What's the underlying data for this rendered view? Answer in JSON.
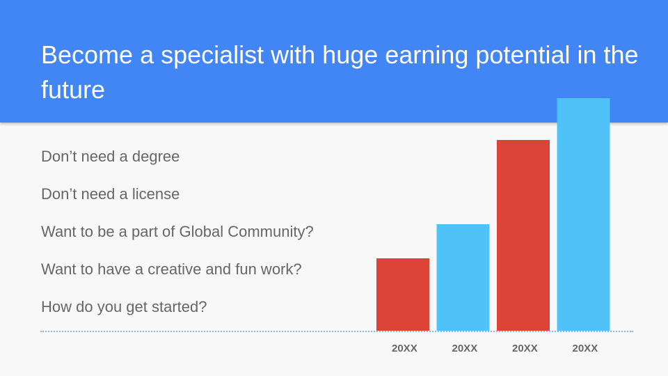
{
  "slide": {
    "title": "Become a specialist with huge earning potential in the future",
    "bullets": [
      "Don’t need a degree",
      "Don’t need a license",
      "Want to be a part of Global Community?",
      "Want to have a creative and fun work?",
      "How do you get started?"
    ]
  },
  "colors": {
    "header": "#4285f4",
    "bar_red": "#db4437",
    "bar_blue": "#4fc3f7"
  },
  "chart_data": {
    "type": "bar",
    "title": "",
    "xlabel": "",
    "ylabel": "",
    "categories": [
      "20XX",
      "20XX",
      "20XX",
      "20XX"
    ],
    "values": [
      104,
      153,
      274,
      334
    ],
    "bar_colors": [
      "#db4437",
      "#4fc3f7",
      "#db4437",
      "#4fc3f7"
    ],
    "ylim": [
      0,
      334
    ],
    "grid": false,
    "legend": "none"
  }
}
